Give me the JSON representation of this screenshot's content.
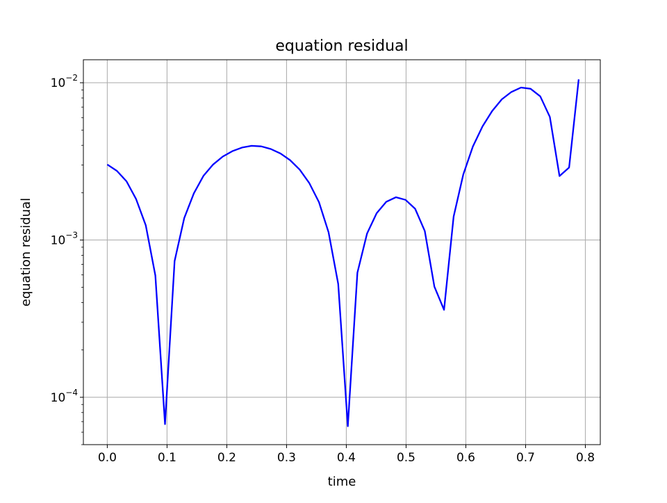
{
  "chart_data": {
    "type": "line",
    "title": "equation residual",
    "xlabel": "time",
    "ylabel": "equation residual",
    "xscale": "linear",
    "yscale": "log",
    "xlim": [
      -0.04,
      0.825
    ],
    "ylim": [
      5e-05,
      0.014
    ],
    "grid": true,
    "line_color": "#0000ff",
    "grid_color": "#b0b0b0",
    "xticks": [
      {
        "value": 0.0,
        "label": "0.0"
      },
      {
        "value": 0.1,
        "label": "0.1"
      },
      {
        "value": 0.2,
        "label": "0.2"
      },
      {
        "value": 0.3,
        "label": "0.3"
      },
      {
        "value": 0.4,
        "label": "0.4"
      },
      {
        "value": 0.5,
        "label": "0.5"
      },
      {
        "value": 0.6,
        "label": "0.6"
      },
      {
        "value": 0.7,
        "label": "0.7"
      },
      {
        "value": 0.8,
        "label": "0.8"
      }
    ],
    "yticks": [
      {
        "value": 0.0001,
        "base": "10",
        "exp": "−4"
      },
      {
        "value": 0.001,
        "base": "10",
        "exp": "−3"
      },
      {
        "value": 0.01,
        "base": "10",
        "exp": "−2"
      }
    ],
    "series": [
      {
        "x": [
          0.0,
          0.0161,
          0.0322,
          0.0483,
          0.0644,
          0.0805,
          0.0966,
          0.1127,
          0.1288,
          0.1449,
          0.161,
          0.1771,
          0.1932,
          0.2093,
          0.2254,
          0.2415,
          0.2576,
          0.2737,
          0.2898,
          0.3059,
          0.322,
          0.3381,
          0.3542,
          0.3703,
          0.3864,
          0.4025,
          0.4186,
          0.4347,
          0.4508,
          0.4669,
          0.483,
          0.4991,
          0.5152,
          0.5313,
          0.5474,
          0.5635,
          0.5796,
          0.5957,
          0.6118,
          0.6279,
          0.644,
          0.6601,
          0.6762,
          0.6923,
          0.7084,
          0.7245,
          0.7406,
          0.7567,
          0.7728,
          0.7889
        ],
        "values": [
          0.00302,
          0.00275,
          0.00236,
          0.00182,
          0.00124,
          0.000595,
          6.75e-05,
          0.000735,
          0.00138,
          0.00198,
          0.00256,
          0.00302,
          0.00339,
          0.00367,
          0.00387,
          0.00397,
          0.00394,
          0.00379,
          0.00355,
          0.00322,
          0.0028,
          0.0023,
          0.00174,
          0.00112,
          0.000525,
          6.55e-05,
          0.00062,
          0.0011,
          0.00148,
          0.00175,
          0.00187,
          0.0018,
          0.00158,
          0.00114,
          0.000505,
          0.00036,
          0.00141,
          0.00261,
          0.00393,
          0.00528,
          0.0066,
          0.00784,
          0.00873,
          0.00932,
          0.00915,
          0.00819,
          0.00606,
          0.00255,
          0.00289,
          0.0105
        ]
      }
    ]
  }
}
